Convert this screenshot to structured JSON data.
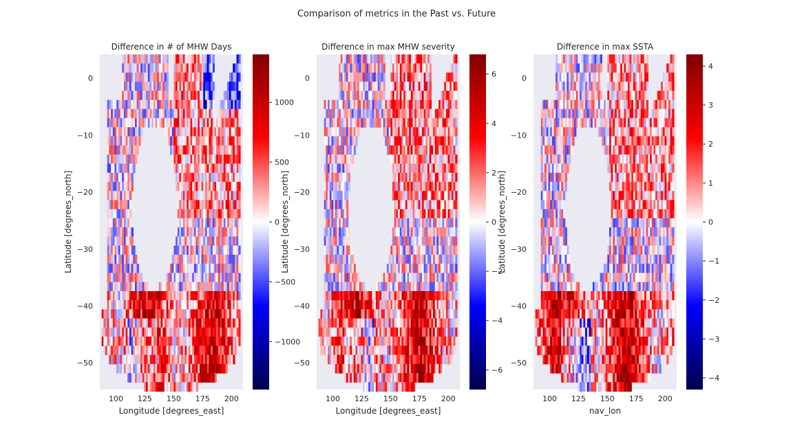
{
  "figure": {
    "suptitle": "Comparison of metrics in the Past vs. Future"
  },
  "chart_data": [
    {
      "type": "heatmap",
      "title": "Difference in # of MHW Days",
      "xlabel": "Longitude [degrees_east]",
      "ylabel": "Latitude [degrees_north]",
      "xlim": [
        86,
        210
      ],
      "ylim": [
        -54.7,
        4.2
      ],
      "xticks": [
        100,
        125,
        150,
        175,
        200
      ],
      "xtick_labels": [
        "100",
        "125",
        "150",
        "175",
        "200"
      ],
      "yticks": [
        0,
        -10,
        -20,
        -30,
        -40,
        -50
      ],
      "ytick_labels": [
        "0",
        "−10",
        "−20",
        "−30",
        "−40",
        "−50"
      ],
      "colorbar": {
        "cmap": "seismic",
        "vmin": -1400,
        "vmax": 1400,
        "ticks": [
          1000,
          500,
          0,
          -500,
          -1000
        ],
        "tick_labels": [
          "1000",
          "500",
          "0",
          "−500",
          "−1000"
        ]
      },
      "background": "#eaeaf2",
      "grid": false
    },
    {
      "type": "heatmap",
      "title": "Difference in max MHW severity",
      "xlabel": "Longitude [degrees_east]",
      "ylabel": "Latitude [degrees_north]",
      "xlim": [
        86,
        210
      ],
      "ylim": [
        -54.7,
        4.2
      ],
      "xticks": [
        100,
        125,
        150,
        175,
        200
      ],
      "xtick_labels": [
        "100",
        "125",
        "150",
        "175",
        "200"
      ],
      "yticks": [
        0,
        -10,
        -20,
        -30,
        -40,
        -50
      ],
      "ytick_labels": [
        "0",
        "−10",
        "−20",
        "−30",
        "−40",
        "−50"
      ],
      "colorbar": {
        "cmap": "seismic",
        "vmin": -6.8,
        "vmax": 6.8,
        "ticks": [
          6,
          4,
          2,
          0,
          -2,
          -4,
          -6
        ],
        "tick_labels": [
          "6",
          "4",
          "2",
          "0",
          "−2",
          "−4",
          "−6"
        ]
      },
      "background": "#eaeaf2",
      "grid": false
    },
    {
      "type": "heatmap",
      "title": "Difference in max SSTA",
      "xlabel": "nav_lon",
      "ylabel": "Latitude [degrees_north]",
      "xlim": [
        86,
        210
      ],
      "ylim": [
        -54.7,
        4.2
      ],
      "xticks": [
        100,
        125,
        150,
        175,
        200
      ],
      "xtick_labels": [
        "100",
        "125",
        "150",
        "175",
        "200"
      ],
      "yticks": [
        0,
        -10,
        -20,
        -30,
        -40,
        -50
      ],
      "ytick_labels": [
        "0",
        "−10",
        "−20",
        "−30",
        "−40",
        "−50"
      ],
      "colorbar": {
        "cmap": "seismic",
        "vmin": -4.3,
        "vmax": 4.3,
        "ticks": [
          4,
          3,
          2,
          1,
          0,
          -1,
          -2,
          -3,
          -4
        ],
        "tick_labels": [
          "4",
          "3",
          "2",
          "1",
          "0",
          "−1",
          "−2",
          "−3",
          "−4"
        ]
      },
      "background": "#eaeaf2",
      "grid": false
    }
  ]
}
